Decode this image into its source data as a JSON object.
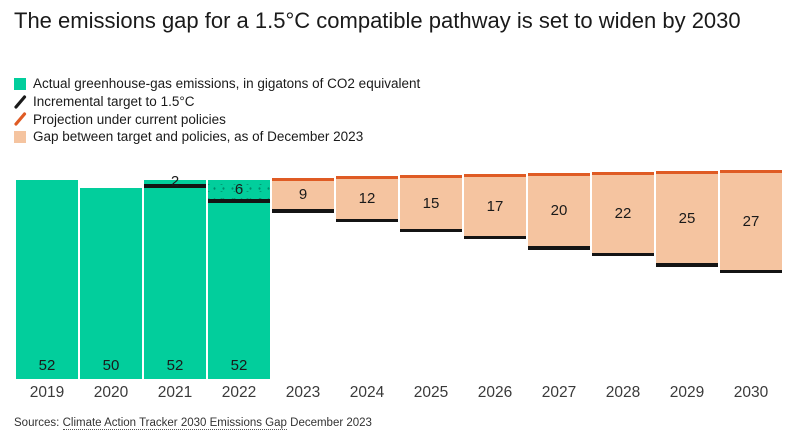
{
  "title": "The emissions gap for a 1.5°C compatible pathway is set to widen by 2030",
  "colors": {
    "actual_green": "#02CE9C",
    "gap_peach": "#F5C4A0",
    "target_black": "#141414",
    "projection_orange": "#DF5B24",
    "text": "#1a1a1a"
  },
  "legend": {
    "items": [
      {
        "icon": "green-square",
        "shape": "square",
        "color": "#02CE9C",
        "label": "Actual greenhouse-gas emissions, in gigatons of CO2 equivalent"
      },
      {
        "icon": "black-slash",
        "shape": "slash",
        "color": "#1a1a1a",
        "label": "Incremental target to 1.5°C"
      },
      {
        "icon": "orange-slash",
        "shape": "slash",
        "color": "#DF5B24",
        "label": "Projection under current policies"
      },
      {
        "icon": "peach-square",
        "shape": "square",
        "color": "#F5C4A0",
        "label": "Gap between target and policies, as of December 2023"
      }
    ]
  },
  "chart_data": {
    "type": "bar",
    "title": "The emissions gap for a 1.5°C compatible pathway is set to widen by 2030",
    "unit": "gigatons of CO2 equivalent",
    "categories": [
      "2019",
      "2020",
      "2021",
      "2022",
      "2023",
      "2024",
      "2025",
      "2026",
      "2027",
      "2028",
      "2029",
      "2030"
    ],
    "series": [
      {
        "name": "Actual greenhouse-gas emissions",
        "values": [
          52,
          50,
          52,
          52,
          null,
          null,
          null,
          null,
          null,
          null,
          null,
          null
        ]
      },
      {
        "name": "Incremental target to 1.5°C",
        "values": [
          null,
          null,
          50,
          46,
          43.5,
          41,
          38.3,
          36.5,
          33.8,
          32.1,
          29.3,
          27.6
        ]
      },
      {
        "name": "Projection under current policies",
        "values": [
          null,
          null,
          null,
          null,
          52.5,
          53,
          53.3,
          53.5,
          53.8,
          54.1,
          54.3,
          54.6
        ]
      },
      {
        "name": "Gap between target and policies",
        "values": [
          null,
          null,
          2,
          6,
          9,
          12,
          15,
          17,
          20,
          22,
          25,
          27
        ]
      }
    ],
    "actual_labels": [
      "52",
      "50",
      "52",
      "52",
      null,
      null,
      null,
      null,
      null,
      null,
      null,
      null
    ],
    "gap_labels": [
      null,
      null,
      "2",
      "6",
      "9",
      "12",
      "15",
      "17",
      "20",
      "22",
      "25",
      "27"
    ],
    "ylim": [
      0,
      56
    ],
    "grid": false,
    "legend_position": "top-left"
  },
  "source": {
    "prefix": "Sources: ",
    "link_text": "Climate Action Tracker 2030 Emissions Gap",
    "suffix": " December 2023"
  }
}
